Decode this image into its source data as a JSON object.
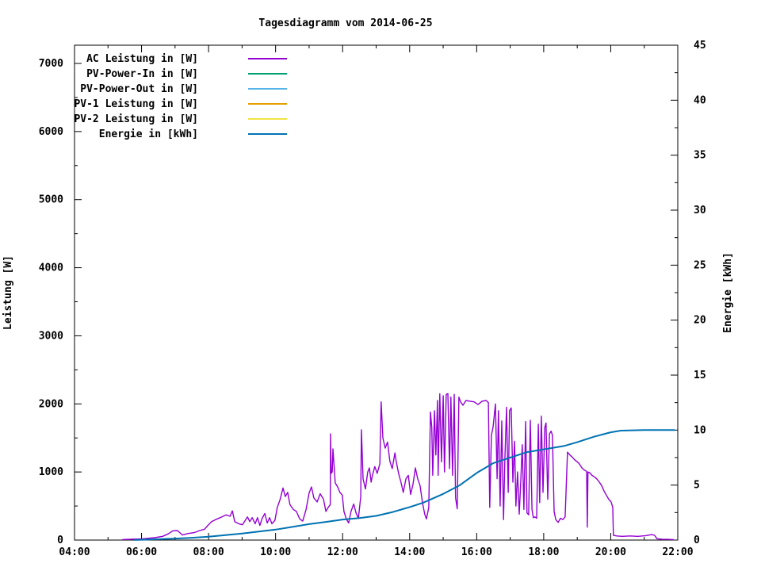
{
  "title": "Tagesdiagramm vom 2014-06-25",
  "axes": {
    "x": {
      "major_tick_hours": [
        4,
        6,
        8,
        10,
        12,
        14,
        16,
        18,
        20,
        22
      ],
      "major_tick_labels": [
        "04:00",
        "06:00",
        "08:00",
        "10:00",
        "12:00",
        "14:00",
        "16:00",
        "18:00",
        "20:00",
        "22:00"
      ],
      "minor_tick_hours": [
        5,
        7,
        9,
        11,
        13,
        15,
        17,
        19,
        21
      ],
      "range_hours": [
        4,
        22
      ]
    },
    "y1": {
      "label": "Leistung [W]",
      "major_ticks": [
        0,
        1000,
        2000,
        3000,
        4000,
        5000,
        6000,
        7000
      ],
      "minor_ticks": [
        500,
        1500,
        2500,
        3500,
        4500,
        5500,
        6500
      ],
      "range": [
        0,
        7268
      ]
    },
    "y2": {
      "label": "Energie [kWh]",
      "major_ticks": [
        0,
        5,
        10,
        15,
        20,
        25,
        30,
        35,
        40,
        45
      ],
      "minor_ticks": [
        2.5,
        7.5,
        12.5,
        17.5,
        22.5,
        27.5,
        32.5,
        37.5,
        42.5
      ],
      "range": [
        0,
        45
      ]
    }
  },
  "legend": [
    {
      "label": "AC Leistung in [W]",
      "color": "#9400d3"
    },
    {
      "label": "PV-Power-In in [W]",
      "color": "#009e73"
    },
    {
      "label": "PV-Power-Out in [W]",
      "color": "#56b4e9"
    },
    {
      "label": "PV-1 Leistung in [W]",
      "color": "#e69f00"
    },
    {
      "label": "PV-2 Leistung in [W]",
      "color": "#f0e442"
    },
    {
      "label": "Energie in [kWh]",
      "color": "#0072b2"
    }
  ],
  "colors": {
    "ac": "#9400d3",
    "pv_power_in": "#009e73",
    "pv_power_out": "#56b4e9",
    "pv1": "#e69f00",
    "pv2": "#f0e442",
    "energie": "#0072b2",
    "frame": "#000000",
    "background": "#ffffff"
  },
  "chart_data": {
    "type": "line",
    "title": "Tagesdiagramm vom 2014-06-25",
    "xlabel": "",
    "ylabel_left": "Leistung [W]",
    "ylabel_right": "Energie [kWh]",
    "x_unit": "hour_of_day",
    "xlim": [
      4,
      22
    ],
    "y1lim": [
      0,
      7268
    ],
    "y2lim": [
      0,
      45
    ],
    "grid": false,
    "legend_position": "top-left-inside",
    "series": [
      {
        "name": "AC Leistung in [W]",
        "axis": "y1",
        "color": "#9400d3",
        "points": [
          [
            5.44,
            8
          ],
          [
            5.68,
            12
          ],
          [
            6.03,
            18
          ],
          [
            6.39,
            35
          ],
          [
            6.63,
            55
          ],
          [
            6.79,
            90
          ],
          [
            6.93,
            135
          ],
          [
            7.07,
            140
          ],
          [
            7.22,
            75
          ],
          [
            7.38,
            95
          ],
          [
            7.57,
            110
          ],
          [
            7.74,
            140
          ],
          [
            7.88,
            160
          ],
          [
            7.97,
            210
          ],
          [
            8.09,
            270
          ],
          [
            8.21,
            300
          ],
          [
            8.35,
            330
          ],
          [
            8.52,
            370
          ],
          [
            8.64,
            350
          ],
          [
            8.71,
            430
          ],
          [
            8.78,
            270
          ],
          [
            8.9,
            240
          ],
          [
            9.01,
            225
          ],
          [
            9.16,
            340
          ],
          [
            9.23,
            270
          ],
          [
            9.3,
            330
          ],
          [
            9.39,
            240
          ],
          [
            9.46,
            330
          ],
          [
            9.53,
            215
          ],
          [
            9.6,
            320
          ],
          [
            9.68,
            390
          ],
          [
            9.75,
            250
          ],
          [
            9.82,
            330
          ],
          [
            9.89,
            240
          ],
          [
            9.98,
            290
          ],
          [
            10.05,
            480
          ],
          [
            10.13,
            590
          ],
          [
            10.22,
            765
          ],
          [
            10.29,
            640
          ],
          [
            10.36,
            700
          ],
          [
            10.43,
            520
          ],
          [
            10.53,
            450
          ],
          [
            10.62,
            420
          ],
          [
            10.72,
            310
          ],
          [
            10.81,
            280
          ],
          [
            10.91,
            450
          ],
          [
            11.0,
            690
          ],
          [
            11.07,
            780
          ],
          [
            11.14,
            620
          ],
          [
            11.24,
            560
          ],
          [
            11.33,
            680
          ],
          [
            11.43,
            600
          ],
          [
            11.5,
            420
          ],
          [
            11.57,
            480
          ],
          [
            11.63,
            520
          ],
          [
            11.64,
            1560
          ],
          [
            11.66,
            980
          ],
          [
            11.69,
            1000
          ],
          [
            11.71,
            1340
          ],
          [
            11.78,
            840
          ],
          [
            11.85,
            780
          ],
          [
            11.92,
            700
          ],
          [
            11.99,
            660
          ],
          [
            12.04,
            420
          ],
          [
            12.11,
            310
          ],
          [
            12.18,
            250
          ],
          [
            12.25,
            420
          ],
          [
            12.33,
            530
          ],
          [
            12.4,
            400
          ],
          [
            12.47,
            320
          ],
          [
            12.54,
            640
          ],
          [
            12.56,
            1620
          ],
          [
            12.61,
            900
          ],
          [
            12.68,
            750
          ],
          [
            12.75,
            1000
          ],
          [
            12.8,
            1060
          ],
          [
            12.85,
            850
          ],
          [
            12.89,
            950
          ],
          [
            12.96,
            1080
          ],
          [
            13.03,
            980
          ],
          [
            13.11,
            1120
          ],
          [
            13.15,
            2030
          ],
          [
            13.2,
            1500
          ],
          [
            13.27,
            1350
          ],
          [
            13.34,
            1440
          ],
          [
            13.41,
            1160
          ],
          [
            13.48,
            1050
          ],
          [
            13.56,
            1280
          ],
          [
            13.6,
            1150
          ],
          [
            13.67,
            980
          ],
          [
            13.74,
            850
          ],
          [
            13.81,
            700
          ],
          [
            13.89,
            900
          ],
          [
            13.96,
            950
          ],
          [
            14.03,
            670
          ],
          [
            14.1,
            820
          ],
          [
            14.17,
            1060
          ],
          [
            14.24,
            900
          ],
          [
            14.31,
            800
          ],
          [
            14.38,
            560
          ],
          [
            14.45,
            380
          ],
          [
            14.5,
            310
          ],
          [
            14.57,
            480
          ],
          [
            14.62,
            1880
          ],
          [
            14.66,
            1650
          ],
          [
            14.69,
            950
          ],
          [
            14.74,
            1900
          ],
          [
            14.78,
            1250
          ],
          [
            14.83,
            2050
          ],
          [
            14.85,
            950
          ],
          [
            14.9,
            2150
          ],
          [
            14.95,
            1150
          ],
          [
            15.0,
            2120
          ],
          [
            15.04,
            1000
          ],
          [
            15.09,
            2140
          ],
          [
            15.14,
            2150
          ],
          [
            15.19,
            1050
          ],
          [
            15.23,
            2100
          ],
          [
            15.28,
            950
          ],
          [
            15.33,
            2140
          ],
          [
            15.37,
            620
          ],
          [
            15.42,
            460
          ],
          [
            15.47,
            2100
          ],
          [
            15.52,
            2030
          ],
          [
            15.59,
            1980
          ],
          [
            15.68,
            2050
          ],
          [
            15.8,
            2040
          ],
          [
            15.92,
            2030
          ],
          [
            16.04,
            1990
          ],
          [
            16.16,
            2040
          ],
          [
            16.28,
            2050
          ],
          [
            16.35,
            2020
          ],
          [
            16.39,
            480
          ],
          [
            16.44,
            1540
          ],
          [
            16.49,
            1660
          ],
          [
            16.56,
            2000
          ],
          [
            16.61,
            900
          ],
          [
            16.65,
            1900
          ],
          [
            16.7,
            500
          ],
          [
            16.75,
            1750
          ],
          [
            16.8,
            300
          ],
          [
            16.84,
            1150
          ],
          [
            16.89,
            1950
          ],
          [
            16.94,
            700
          ],
          [
            16.98,
            1900
          ],
          [
            17.03,
            1940
          ],
          [
            17.08,
            850
          ],
          [
            17.13,
            1450
          ],
          [
            17.17,
            500
          ],
          [
            17.22,
            1000
          ],
          [
            17.27,
            380
          ],
          [
            17.32,
            900
          ],
          [
            17.36,
            1400
          ],
          [
            17.41,
            450
          ],
          [
            17.46,
            1740
          ],
          [
            17.5,
            400
          ],
          [
            17.55,
            370
          ],
          [
            17.6,
            1760
          ],
          [
            17.65,
            450
          ],
          [
            17.69,
            330
          ],
          [
            17.74,
            340
          ],
          [
            17.79,
            320
          ],
          [
            17.84,
            1700
          ],
          [
            17.88,
            550
          ],
          [
            17.93,
            1820
          ],
          [
            17.98,
            700
          ],
          [
            18.03,
            1650
          ],
          [
            18.07,
            1720
          ],
          [
            18.12,
            600
          ],
          [
            18.17,
            1560
          ],
          [
            18.22,
            1600
          ],
          [
            18.26,
            1540
          ],
          [
            18.31,
            420
          ],
          [
            18.36,
            300
          ],
          [
            18.43,
            260
          ],
          [
            18.5,
            320
          ],
          [
            18.57,
            300
          ],
          [
            18.64,
            340
          ],
          [
            18.71,
            1290
          ],
          [
            18.78,
            1250
          ],
          [
            18.85,
            1220
          ],
          [
            18.92,
            1180
          ],
          [
            19.0,
            1150
          ],
          [
            19.06,
            1120
          ],
          [
            19.14,
            1060
          ],
          [
            19.21,
            1030
          ],
          [
            19.28,
            1010
          ],
          [
            19.3,
            190
          ],
          [
            19.32,
            1000
          ],
          [
            19.37,
            990
          ],
          [
            19.44,
            950
          ],
          [
            19.51,
            930
          ],
          [
            19.58,
            900
          ],
          [
            19.66,
            850
          ],
          [
            19.73,
            800
          ],
          [
            19.8,
            720
          ],
          [
            19.87,
            660
          ],
          [
            19.94,
            600
          ],
          [
            20.01,
            560
          ],
          [
            20.06,
            480
          ],
          [
            20.08,
            70
          ],
          [
            20.18,
            60
          ],
          [
            20.34,
            55
          ],
          [
            20.58,
            60
          ],
          [
            20.81,
            55
          ],
          [
            21.05,
            65
          ],
          [
            21.22,
            80
          ],
          [
            21.31,
            70
          ],
          [
            21.38,
            20
          ],
          [
            21.53,
            12
          ],
          [
            21.69,
            10
          ],
          [
            21.83,
            8
          ],
          [
            21.88,
            5
          ]
        ]
      },
      {
        "name": "PV-Power-In in [W]",
        "axis": "y1",
        "color": "#009e73",
        "points": []
      },
      {
        "name": "PV-Power-Out in [W]",
        "axis": "y1",
        "color": "#56b4e9",
        "points": []
      },
      {
        "name": "PV-1 Leistung in [W]",
        "axis": "y1",
        "color": "#e69f00",
        "points": []
      },
      {
        "name": "PV-2 Leistung in [W]",
        "axis": "y1",
        "color": "#f0e442",
        "points": []
      },
      {
        "name": "Energie in [kWh]",
        "axis": "y2",
        "color": "#0072b2",
        "points": [
          [
            5.8,
            0.01
          ],
          [
            6.0,
            0.03
          ],
          [
            6.5,
            0.08
          ],
          [
            7.0,
            0.14
          ],
          [
            7.5,
            0.21
          ],
          [
            8.0,
            0.3
          ],
          [
            8.5,
            0.45
          ],
          [
            9.0,
            0.6
          ],
          [
            9.5,
            0.78
          ],
          [
            10.0,
            0.95
          ],
          [
            10.5,
            1.2
          ],
          [
            11.0,
            1.45
          ],
          [
            11.5,
            1.65
          ],
          [
            12.0,
            1.87
          ],
          [
            12.5,
            2.0
          ],
          [
            13.0,
            2.2
          ],
          [
            13.5,
            2.55
          ],
          [
            14.0,
            3.0
          ],
          [
            14.4,
            3.4
          ],
          [
            15.0,
            4.2
          ],
          [
            15.5,
            5.0
          ],
          [
            16.0,
            6.1
          ],
          [
            16.5,
            7.0
          ],
          [
            17.0,
            7.5
          ],
          [
            17.5,
            8.0
          ],
          [
            18.0,
            8.25
          ],
          [
            18.6,
            8.55
          ],
          [
            19.0,
            8.9
          ],
          [
            19.5,
            9.4
          ],
          [
            20.0,
            9.8
          ],
          [
            20.3,
            9.95
          ],
          [
            21.0,
            10.0
          ],
          [
            21.9,
            10.0
          ]
        ]
      }
    ]
  }
}
